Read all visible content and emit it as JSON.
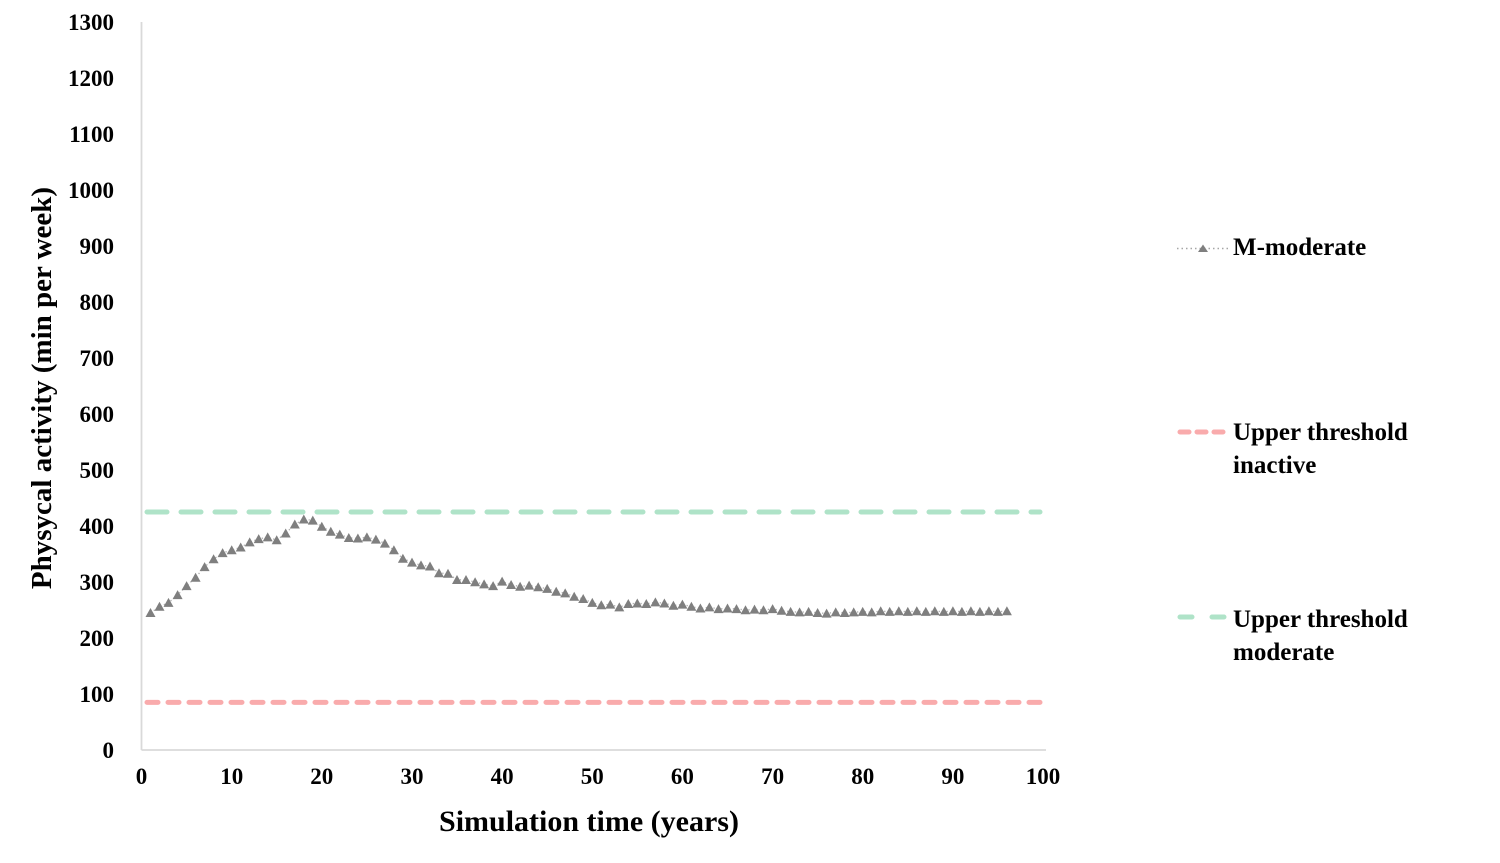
{
  "page": {
    "background": "#ffffff",
    "text_color": "#000000",
    "axis_line_color": "#d9d9d9"
  },
  "chart_data": {
    "type": "line",
    "title": "",
    "xlabel": "Simulation time (years)",
    "ylabel": "Physycal activity (min per week)",
    "xlim": [
      0,
      100
    ],
    "ylim": [
      0,
      1300
    ],
    "xticks": [
      0,
      10,
      20,
      30,
      40,
      50,
      60,
      70,
      80,
      90,
      100
    ],
    "yticks": [
      0,
      100,
      200,
      300,
      400,
      500,
      600,
      700,
      800,
      900,
      1000,
      1100,
      1200,
      1300
    ],
    "grid": false,
    "legend_position": "right",
    "series": [
      {
        "name": "M-moderate",
        "type": "scatter",
        "marker": "triangle",
        "marker_color": "#7f7f7f",
        "line_color": "#b0b0b0",
        "line_style": "dotted",
        "x": [
          1,
          2,
          3,
          4,
          5,
          6,
          7,
          8,
          9,
          10,
          11,
          12,
          13,
          14,
          15,
          16,
          17,
          18,
          19,
          20,
          21,
          22,
          23,
          24,
          25,
          26,
          27,
          28,
          29,
          30,
          31,
          32,
          33,
          34,
          35,
          36,
          37,
          38,
          39,
          40,
          41,
          42,
          43,
          44,
          45,
          46,
          47,
          48,
          49,
          50,
          51,
          52,
          53,
          54,
          55,
          56,
          57,
          58,
          59,
          60,
          61,
          62,
          63,
          64,
          65,
          66,
          67,
          68,
          69,
          70,
          71,
          72,
          73,
          74,
          75,
          76,
          77,
          78,
          79,
          80,
          81,
          82,
          83,
          84,
          85,
          86,
          87,
          88,
          89,
          90,
          91,
          92,
          93,
          94,
          95,
          96
        ],
        "y": [
          245,
          256,
          263,
          277,
          293,
          308,
          327,
          341,
          352,
          357,
          362,
          371,
          377,
          380,
          375,
          387,
          403,
          412,
          410,
          399,
          390,
          385,
          379,
          378,
          380,
          376,
          369,
          357,
          342,
          335,
          330,
          328,
          316,
          315,
          304,
          304,
          300,
          296,
          293,
          301,
          295,
          292,
          294,
          291,
          288,
          283,
          280,
          274,
          270,
          263,
          259,
          260,
          255,
          261,
          262,
          261,
          264,
          262,
          258,
          260,
          256,
          253,
          255,
          252,
          253,
          252,
          250,
          251,
          250,
          252,
          249,
          247,
          246,
          247,
          245,
          244,
          246,
          245,
          246,
          247,
          246,
          248,
          247,
          248,
          247,
          248,
          247,
          248,
          247,
          248,
          247,
          248,
          247,
          248,
          247,
          248
        ]
      },
      {
        "name": "Upper threshold inactive",
        "type": "hline",
        "value": 85,
        "color": "#f9abac",
        "line_style": "dashed",
        "dash": "11 10"
      },
      {
        "name": "Upper threshold moderate",
        "type": "hline",
        "value": 425,
        "color": "#afe3c8",
        "line_style": "dashed",
        "dash": "20 14"
      }
    ],
    "legend": {
      "entries": [
        {
          "label": "M-moderate"
        },
        {
          "label": "Upper threshold inactive"
        },
        {
          "label": "Upper threshold moderate"
        }
      ]
    }
  }
}
